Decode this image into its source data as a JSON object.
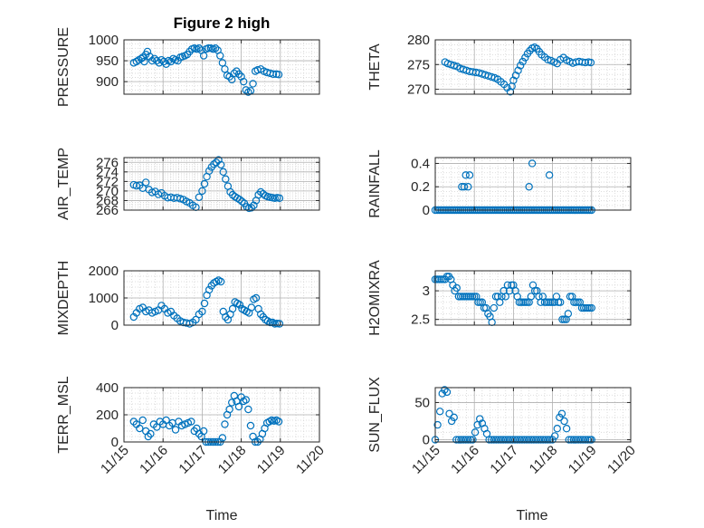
{
  "figure": {
    "title": "Figure 2 high",
    "xlabel_left": "Time",
    "xlabel_right": "Time"
  },
  "colors": {
    "marker": "#0072BD",
    "axis": "#262626",
    "grid": "#b0b0b0"
  },
  "chart_data": [
    {
      "id": "pressure",
      "type": "scatter",
      "ylabel": "PRESSURE",
      "title": "Figure 2 high",
      "xlim": [
        0,
        5
      ],
      "ylim": [
        870,
        1000
      ],
      "yticks": [
        900,
        950,
        1000
      ],
      "xticks": [
        "11/15",
        "11/16",
        "11/17",
        "11/18",
        "11/19",
        "11/20"
      ],
      "show_xticklabels": false,
      "x": [
        0.25,
        0.32,
        0.38,
        0.44,
        0.48,
        0.52,
        0.56,
        0.6,
        0.66,
        0.72,
        0.78,
        0.84,
        0.9,
        0.96,
        1.02,
        1.08,
        1.14,
        1.2,
        1.26,
        1.32,
        1.38,
        1.44,
        1.5,
        1.56,
        1.62,
        1.68,
        1.74,
        1.8,
        1.86,
        1.92,
        1.98,
        2.04,
        2.1,
        2.16,
        2.22,
        2.28,
        2.34,
        2.4,
        2.46,
        2.52,
        2.58,
        2.64,
        2.7,
        2.76,
        2.82,
        2.88,
        2.94,
        3.0,
        3.06,
        3.12,
        3.18,
        3.24,
        3.3,
        3.36,
        3.42,
        3.5,
        3.58,
        3.66,
        3.74,
        3.82,
        3.9,
        3.96
      ],
      "y": [
        945,
        948,
        952,
        955,
        958,
        948,
        965,
        972,
        960,
        950,
        955,
        950,
        945,
        952,
        948,
        942,
        950,
        948,
        955,
        952,
        950,
        958,
        960,
        962,
        965,
        972,
        978,
        980,
        978,
        980,
        975,
        962,
        978,
        980,
        980,
        978,
        980,
        975,
        962,
        945,
        930,
        915,
        912,
        905,
        920,
        925,
        918,
        912,
        900,
        880,
        875,
        878,
        895,
        925,
        928,
        930,
        925,
        922,
        920,
        918,
        918,
        917
      ]
    },
    {
      "id": "theta",
      "type": "scatter",
      "ylabel": "THETA",
      "xlim": [
        0,
        5
      ],
      "ylim": [
        269,
        280
      ],
      "yticks": [
        270,
        275,
        280
      ],
      "xticks": [
        "11/15",
        "11/16",
        "11/17",
        "11/18",
        "11/19",
        "11/20"
      ],
      "show_xticklabels": false,
      "x": [
        0.25,
        0.32,
        0.4,
        0.48,
        0.56,
        0.64,
        0.72,
        0.8,
        0.88,
        0.96,
        1.04,
        1.12,
        1.2,
        1.28,
        1.36,
        1.44,
        1.52,
        1.6,
        1.68,
        1.76,
        1.84,
        1.92,
        1.96,
        2.0,
        2.06,
        2.12,
        2.18,
        2.24,
        2.3,
        2.36,
        2.42,
        2.48,
        2.54,
        2.6,
        2.66,
        2.72,
        2.8,
        2.88,
        2.96,
        3.04,
        3.12,
        3.2,
        3.28,
        3.36,
        3.44,
        3.52,
        3.6,
        3.68,
        3.76,
        3.84,
        3.92,
        3.98
      ],
      "y": [
        275.5,
        275.2,
        275.0,
        274.8,
        274.6,
        274.2,
        274.0,
        273.8,
        273.6,
        273.5,
        273.4,
        273.3,
        273.1,
        272.9,
        272.7,
        272.5,
        272.3,
        272.0,
        271.5,
        271.0,
        270.3,
        269.5,
        270.6,
        271.8,
        272.8,
        273.8,
        274.8,
        275.6,
        276.4,
        277.2,
        277.8,
        278.3,
        278.5,
        278.2,
        277.6,
        277.0,
        276.5,
        276.0,
        275.8,
        275.5,
        275.2,
        276.0,
        276.4,
        275.9,
        275.6,
        275.3,
        275.5,
        275.6,
        275.5,
        275.4,
        275.5,
        275.4
      ]
    },
    {
      "id": "air_temp",
      "type": "scatter",
      "ylabel": "AIR_TEMP",
      "xlim": [
        0,
        5
      ],
      "ylim": [
        266,
        277
      ],
      "yticks": [
        266,
        268,
        270,
        272,
        274,
        276
      ],
      "xticks": [
        "11/15",
        "11/16",
        "11/17",
        "11/18",
        "11/19",
        "11/20"
      ],
      "show_xticklabels": false,
      "x": [
        0.25,
        0.32,
        0.4,
        0.48,
        0.56,
        0.64,
        0.72,
        0.8,
        0.88,
        0.96,
        1.04,
        1.12,
        1.2,
        1.28,
        1.36,
        1.44,
        1.52,
        1.6,
        1.68,
        1.76,
        1.84,
        1.92,
        2.0,
        2.06,
        2.12,
        2.18,
        2.24,
        2.3,
        2.36,
        2.42,
        2.48,
        2.54,
        2.6,
        2.66,
        2.72,
        2.78,
        2.84,
        2.9,
        2.96,
        3.02,
        3.08,
        3.14,
        3.2,
        3.26,
        3.32,
        3.38,
        3.44,
        3.5,
        3.56,
        3.62,
        3.68,
        3.74,
        3.8,
        3.86,
        3.92,
        3.98
      ],
      "y": [
        271.3,
        271.1,
        271.2,
        270.6,
        271.8,
        270.3,
        269.7,
        269.9,
        269.3,
        269.6,
        269.0,
        268.6,
        268.7,
        268.5,
        268.6,
        268.4,
        268.2,
        267.8,
        267.5,
        267.0,
        266.6,
        268.7,
        270.0,
        271.5,
        273.0,
        274.2,
        275.0,
        275.6,
        276.0,
        276.5,
        275.5,
        274.0,
        272.5,
        271.0,
        269.8,
        269.2,
        268.8,
        268.5,
        268.2,
        267.8,
        267.4,
        266.7,
        266.4,
        266.5,
        267.0,
        268.0,
        269.2,
        269.8,
        269.4,
        269.0,
        268.8,
        268.7,
        268.6,
        268.5,
        268.6,
        268.5
      ]
    },
    {
      "id": "rainfall",
      "type": "scatter",
      "ylabel": "RAINFALL",
      "xlim": [
        0,
        5
      ],
      "ylim": [
        0,
        0.45
      ],
      "yticks": [
        0,
        0.2,
        0.4
      ],
      "xticks": [
        "11/15",
        "11/16",
        "11/17",
        "11/18",
        "11/19",
        "11/20"
      ],
      "show_xticklabels": false,
      "x": [
        0.0,
        0.05,
        0.1,
        0.15,
        0.2,
        0.25,
        0.3,
        0.35,
        0.4,
        0.45,
        0.5,
        0.55,
        0.6,
        0.65,
        0.7,
        0.75,
        0.8,
        0.85,
        0.9,
        0.95,
        1.0,
        1.05,
        1.1,
        1.15,
        1.2,
        1.25,
        1.3,
        1.35,
        1.4,
        1.45,
        1.5,
        1.55,
        1.6,
        1.65,
        1.7,
        1.75,
        1.8,
        1.85,
        1.9,
        1.95,
        2.0,
        2.05,
        2.1,
        2.15,
        2.2,
        2.25,
        2.3,
        2.35,
        2.4,
        2.45,
        2.5,
        2.55,
        2.6,
        2.65,
        2.7,
        2.75,
        2.8,
        2.85,
        2.9,
        2.95,
        3.0,
        3.05,
        3.1,
        3.15,
        3.2,
        3.25,
        3.3,
        3.35,
        3.4,
        3.45,
        3.5,
        3.55,
        3.6,
        3.65,
        3.7,
        3.75,
        3.8,
        3.85,
        3.9,
        3.95,
        4.0,
        0.68,
        0.74,
        0.78,
        0.84,
        0.88,
        2.4,
        2.48,
        2.92
      ],
      "y": [
        0,
        0,
        0,
        0,
        0,
        0,
        0,
        0,
        0,
        0,
        0,
        0,
        0,
        0,
        0,
        0,
        0,
        0,
        0,
        0,
        0,
        0,
        0,
        0,
        0,
        0,
        0,
        0,
        0,
        0,
        0,
        0,
        0,
        0,
        0,
        0,
        0,
        0,
        0,
        0,
        0,
        0,
        0,
        0,
        0,
        0,
        0,
        0,
        0,
        0,
        0,
        0,
        0,
        0,
        0,
        0,
        0,
        0,
        0,
        0,
        0,
        0,
        0,
        0,
        0,
        0,
        0,
        0,
        0,
        0,
        0,
        0,
        0,
        0,
        0,
        0,
        0,
        0,
        0,
        0,
        0,
        0.2,
        0.2,
        0.3,
        0.2,
        0.3,
        0.2,
        0.4,
        0.3
      ]
    },
    {
      "id": "mixdepth",
      "type": "scatter",
      "ylabel": "MIXDEPTH",
      "xlim": [
        0,
        5
      ],
      "ylim": [
        0,
        2000
      ],
      "yticks": [
        0,
        1000,
        2000
      ],
      "xticks": [
        "11/15",
        "11/16",
        "11/17",
        "11/18",
        "11/19",
        "11/20"
      ],
      "show_xticklabels": false,
      "x": [
        0.25,
        0.32,
        0.4,
        0.48,
        0.56,
        0.64,
        0.72,
        0.8,
        0.88,
        0.96,
        1.04,
        1.12,
        1.2,
        1.28,
        1.36,
        1.44,
        1.52,
        1.6,
        1.68,
        1.76,
        1.84,
        1.92,
        2.0,
        2.06,
        2.12,
        2.18,
        2.24,
        2.3,
        2.36,
        2.42,
        2.48,
        2.54,
        2.6,
        2.66,
        2.72,
        2.78,
        2.84,
        2.9,
        2.96,
        3.02,
        3.08,
        3.14,
        3.2,
        3.26,
        3.32,
        3.38,
        3.44,
        3.5,
        3.56,
        3.62,
        3.68,
        3.74,
        3.8,
        3.86,
        3.92,
        3.98
      ],
      "y": [
        300,
        450,
        600,
        650,
        500,
        550,
        450,
        500,
        550,
        720,
        600,
        450,
        500,
        350,
        250,
        150,
        100,
        80,
        50,
        100,
        200,
        400,
        500,
        800,
        1100,
        1300,
        1450,
        1550,
        1600,
        1650,
        1600,
        500,
        300,
        200,
        400,
        600,
        850,
        800,
        750,
        600,
        550,
        500,
        450,
        650,
        950,
        1000,
        600,
        400,
        300,
        200,
        150,
        100,
        100,
        50,
        60,
        50
      ]
    },
    {
      "id": "h2omixra",
      "type": "scatter",
      "ylabel": "H2OMIXRA",
      "xlim": [
        0,
        5
      ],
      "ylim": [
        2.4,
        3.35
      ],
      "yticks": [
        2.5,
        3
      ],
      "xticks": [
        "11/15",
        "11/16",
        "11/17",
        "11/18",
        "11/19",
        "11/20"
      ],
      "show_xticklabels": false,
      "x": [
        0.0,
        0.05,
        0.1,
        0.15,
        0.2,
        0.25,
        0.3,
        0.35,
        0.4,
        0.45,
        0.5,
        0.55,
        0.6,
        0.65,
        0.7,
        0.75,
        0.8,
        0.85,
        0.9,
        0.95,
        1.0,
        1.05,
        1.1,
        1.15,
        1.2,
        1.25,
        1.3,
        1.35,
        1.4,
        1.45,
        1.5,
        1.55,
        1.6,
        1.65,
        1.7,
        1.75,
        1.8,
        1.85,
        1.9,
        1.95,
        2.0,
        2.05,
        2.1,
        2.15,
        2.2,
        2.25,
        2.3,
        2.35,
        2.4,
        2.45,
        2.5,
        2.55,
        2.6,
        2.65,
        2.7,
        2.75,
        2.8,
        2.85,
        2.9,
        2.95,
        3.0,
        3.05,
        3.1,
        3.15,
        3.2,
        3.25,
        3.3,
        3.35,
        3.4,
        3.45,
        3.5,
        3.55,
        3.6,
        3.65,
        3.7,
        3.75,
        3.8,
        3.85,
        3.9,
        3.95,
        4.0
      ],
      "y": [
        3.2,
        3.2,
        3.2,
        3.2,
        3.2,
        3.2,
        3.25,
        3.25,
        3.2,
        3.1,
        3.0,
        3.05,
        2.9,
        2.9,
        2.9,
        2.9,
        2.9,
        2.9,
        2.9,
        2.9,
        2.9,
        2.9,
        2.8,
        2.8,
        2.8,
        2.7,
        2.7,
        2.6,
        2.55,
        2.45,
        2.7,
        2.9,
        2.9,
        2.8,
        2.9,
        3.0,
        2.9,
        3.1,
        3.0,
        3.1,
        3.1,
        3.0,
        2.9,
        2.8,
        2.8,
        2.8,
        2.8,
        2.8,
        2.8,
        2.9,
        3.1,
        3.0,
        3.0,
        2.9,
        2.8,
        2.9,
        2.8,
        2.8,
        2.8,
        2.8,
        2.8,
        2.8,
        2.9,
        2.8,
        2.8,
        2.5,
        2.5,
        2.5,
        2.6,
        2.9,
        2.9,
        2.8,
        2.8,
        2.8,
        2.8,
        2.7,
        2.7,
        2.7,
        2.7,
        2.7,
        2.7
      ]
    },
    {
      "id": "terr_msl",
      "type": "scatter",
      "ylabel": "TERR_MSL",
      "xlim": [
        0,
        5
      ],
      "ylim": [
        0,
        400
      ],
      "yticks": [
        0,
        200,
        400
      ],
      "xticks": [
        "11/15",
        "11/16",
        "11/17",
        "11/18",
        "11/19",
        "11/20"
      ],
      "show_xticklabels": true,
      "x": [
        0.25,
        0.32,
        0.4,
        0.48,
        0.56,
        0.62,
        0.68,
        0.76,
        0.84,
        0.92,
        1.0,
        1.08,
        1.16,
        1.24,
        1.32,
        1.4,
        1.48,
        1.56,
        1.64,
        1.72,
        1.8,
        1.86,
        1.92,
        1.98,
        2.04,
        2.1,
        2.16,
        2.22,
        2.28,
        2.34,
        2.4,
        2.46,
        2.52,
        2.58,
        2.64,
        2.7,
        2.76,
        2.82,
        2.88,
        2.94,
        3.0,
        3.06,
        3.12,
        3.18,
        3.24,
        3.3,
        3.36,
        3.42,
        3.48,
        3.54,
        3.6,
        3.66,
        3.72,
        3.78,
        3.84,
        3.9,
        3.96
      ],
      "y": [
        150,
        130,
        100,
        160,
        80,
        40,
        60,
        130,
        110,
        150,
        130,
        160,
        120,
        140,
        90,
        150,
        120,
        130,
        140,
        150,
        80,
        100,
        60,
        40,
        80,
        0,
        0,
        0,
        0,
        0,
        0,
        0,
        30,
        130,
        200,
        240,
        290,
        340,
        300,
        260,
        330,
        300,
        310,
        240,
        120,
        40,
        0,
        0,
        20,
        60,
        100,
        140,
        150,
        160,
        155,
        160,
        150
      ]
    },
    {
      "id": "sun_flux",
      "type": "scatter",
      "ylabel": "SUN_FLUX",
      "xlim": [
        0,
        5
      ],
      "ylim": [
        -3,
        70
      ],
      "yticks": [
        0,
        50
      ],
      "xticks": [
        "11/15",
        "11/16",
        "11/17",
        "11/18",
        "11/19",
        "11/20"
      ],
      "show_xticklabels": true,
      "x": [
        0.0,
        0.06,
        0.12,
        0.18,
        0.24,
        0.3,
        0.36,
        0.42,
        0.48,
        0.54,
        0.6,
        0.66,
        0.72,
        0.78,
        0.84,
        0.9,
        0.96,
        1.02,
        1.08,
        1.14,
        1.2,
        1.26,
        1.32,
        1.38,
        1.44,
        1.5,
        1.56,
        1.62,
        1.68,
        1.74,
        1.8,
        1.86,
        1.92,
        1.98,
        2.04,
        2.1,
        2.16,
        2.22,
        2.28,
        2.34,
        2.4,
        2.46,
        2.52,
        2.58,
        2.64,
        2.7,
        2.76,
        2.82,
        2.88,
        2.94,
        3.0,
        3.06,
        3.12,
        3.18,
        3.24,
        3.3,
        3.36,
        3.42,
        3.48,
        3.54,
        3.6,
        3.66,
        3.72,
        3.78,
        3.84,
        3.9,
        3.96,
        4.0
      ],
      "y": [
        0,
        20,
        38,
        62,
        67,
        64,
        35,
        25,
        30,
        0,
        0,
        0,
        0,
        0,
        0,
        0,
        0,
        10,
        20,
        28,
        22,
        15,
        8,
        0,
        0,
        0,
        0,
        0,
        0,
        0,
        0,
        0,
        0,
        0,
        0,
        0,
        0,
        0,
        0,
        0,
        0,
        0,
        0,
        0,
        0,
        0,
        0,
        0,
        0,
        0,
        0,
        5,
        15,
        30,
        35,
        25,
        15,
        0,
        0,
        0,
        0,
        0,
        0,
        0,
        0,
        0,
        0,
        0
      ]
    }
  ]
}
